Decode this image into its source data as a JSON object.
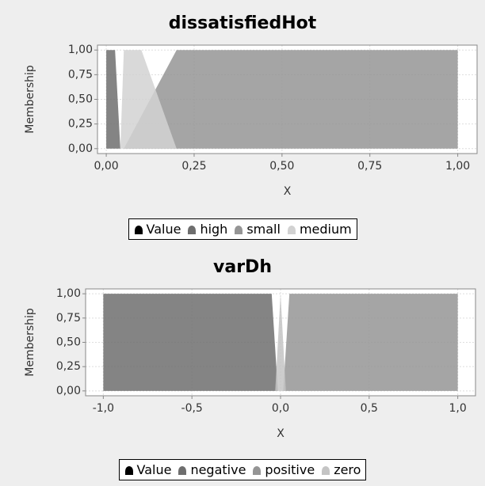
{
  "chart_data": [
    {
      "type": "area",
      "title": "dissatisfiedHot",
      "x_label": "X",
      "y_label": "Membership",
      "xlim": [
        -0.025,
        1.055
      ],
      "ylim": [
        -0.05,
        1.05
      ],
      "xticks": [
        {
          "value": 0,
          "label": "0,00"
        },
        {
          "value": 0.25,
          "label": "0,25"
        },
        {
          "value": 0.5,
          "label": "0,50"
        },
        {
          "value": 0.75,
          "label": "0,75"
        },
        {
          "value": 1,
          "label": "1,00"
        }
      ],
      "yticks": [
        {
          "value": 0,
          "label": "0,00"
        },
        {
          "value": 0.25,
          "label": "0,25"
        },
        {
          "value": 0.5,
          "label": "0,50"
        },
        {
          "value": 0.75,
          "label": "0,75"
        },
        {
          "value": 1,
          "label": "1,00"
        }
      ],
      "grid": true,
      "series": [
        {
          "name": "Value",
          "color": "#000000",
          "x": [],
          "values": []
        },
        {
          "name": "high",
          "color": "#6e6e6e",
          "x": [
            0,
            0,
            0.025,
            0.04
          ],
          "values": [
            0,
            1,
            1,
            0
          ]
        },
        {
          "name": "small",
          "color": "#959595",
          "x": [
            0.05,
            0.2,
            1,
            1
          ],
          "values": [
            0,
            1,
            1,
            0
          ]
        },
        {
          "name": "medium",
          "color": "#d2d2d2",
          "x": [
            0.04,
            0.05,
            0.1,
            0.2
          ],
          "values": [
            0,
            1,
            1,
            0
          ]
        }
      ]
    },
    {
      "type": "area",
      "title": "varDh",
      "x_label": "X",
      "y_label": "Membership",
      "xlim": [
        -1.1,
        1.1
      ],
      "ylim": [
        -0.05,
        1.05
      ],
      "xticks": [
        {
          "value": -1,
          "label": "-1,0"
        },
        {
          "value": -0.5,
          "label": "-0,5"
        },
        {
          "value": 0,
          "label": "0,0"
        },
        {
          "value": 0.5,
          "label": "0,5"
        },
        {
          "value": 1,
          "label": "1,0"
        }
      ],
      "yticks": [
        {
          "value": 0,
          "label": "0,00"
        },
        {
          "value": 0.25,
          "label": "0,25"
        },
        {
          "value": 0.5,
          "label": "0,50"
        },
        {
          "value": 0.75,
          "label": "0,75"
        },
        {
          "value": 1,
          "label": "1,00"
        }
      ],
      "grid": true,
      "series": [
        {
          "name": "Value",
          "color": "#000000",
          "x": [],
          "values": []
        },
        {
          "name": "negative",
          "color": "#6e6e6e",
          "x": [
            -1,
            -1,
            -0.05,
            -0.015
          ],
          "values": [
            0,
            1,
            1,
            0
          ]
        },
        {
          "name": "positive",
          "color": "#959595",
          "x": [
            0.015,
            0.05,
            1,
            1
          ],
          "values": [
            0,
            1,
            1,
            0
          ]
        },
        {
          "name": "zero",
          "color": "#c4c4c4",
          "x": [
            -0.03,
            0,
            0.03
          ],
          "values": [
            0,
            1,
            0
          ]
        }
      ]
    }
  ]
}
